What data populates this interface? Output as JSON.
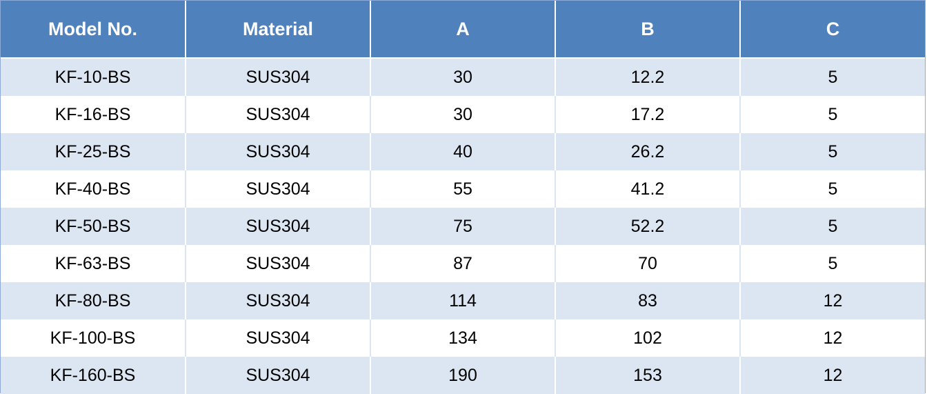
{
  "table": {
    "headers": [
      "Model No.",
      "Material",
      "A",
      "B",
      "C"
    ],
    "rows": [
      [
        "KF-10-BS",
        "SUS304",
        "30",
        "12.2",
        "5"
      ],
      [
        "KF-16-BS",
        "SUS304",
        "30",
        "17.2",
        "5"
      ],
      [
        "KF-25-BS",
        "SUS304",
        "40",
        "26.2",
        "5"
      ],
      [
        "KF-40-BS",
        "SUS304",
        "55",
        "41.2",
        "5"
      ],
      [
        "KF-50-BS",
        "SUS304",
        "75",
        "52.2",
        "5"
      ],
      [
        "KF-63-BS",
        "SUS304",
        "87",
        "70",
        "5"
      ],
      [
        "KF-80-BS",
        "SUS304",
        "114",
        "83",
        "12"
      ],
      [
        "KF-100-BS",
        "SUS304",
        "134",
        "102",
        "12"
      ],
      [
        "KF-160-BS",
        "SUS304",
        "190",
        "153",
        "12"
      ]
    ]
  },
  "colors": {
    "header_bg": "#4f81bd",
    "header_text": "#ffffff",
    "band_row_bg": "#dce6f2",
    "plain_row_bg": "#ffffff",
    "text": "#000000"
  }
}
